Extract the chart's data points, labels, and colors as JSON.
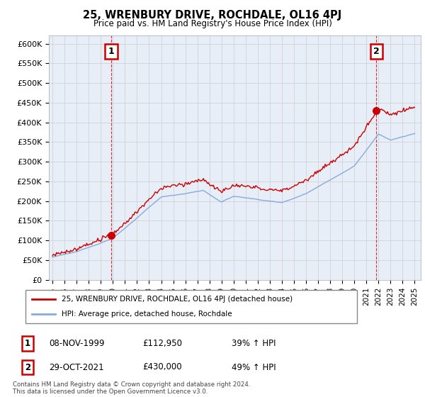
{
  "title": "25, WRENBURY DRIVE, ROCHDALE, OL16 4PJ",
  "subtitle": "Price paid vs. HM Land Registry's House Price Index (HPI)",
  "ylim": [
    0,
    620000
  ],
  "yticks": [
    0,
    50000,
    100000,
    150000,
    200000,
    250000,
    300000,
    350000,
    400000,
    450000,
    500000,
    550000,
    600000
  ],
  "ytick_labels": [
    "£0",
    "£50K",
    "£100K",
    "£150K",
    "£200K",
    "£250K",
    "£300K",
    "£350K",
    "£400K",
    "£450K",
    "£500K",
    "£550K",
    "£600K"
  ],
  "sale1_date": 1999.87,
  "sale1_price": 112950,
  "sale1_label": "1",
  "sale2_date": 2021.83,
  "sale2_price": 430000,
  "sale2_label": "2",
  "line_color_property": "#cc0000",
  "line_color_hpi": "#88aadd",
  "marker_color": "#cc0000",
  "grid_color": "#cccccc",
  "plot_bg_color": "#e8eef8",
  "background_color": "#ffffff",
  "legend_label_property": "25, WRENBURY DRIVE, ROCHDALE, OL16 4PJ (detached house)",
  "legend_label_hpi": "HPI: Average price, detached house, Rochdale",
  "note1_index": "1",
  "note1_date": "08-NOV-1999",
  "note1_price": "£112,950",
  "note1_hpi": "39% ↑ HPI",
  "note2_index": "2",
  "note2_date": "29-OCT-2021",
  "note2_price": "£430,000",
  "note2_hpi": "49% ↑ HPI",
  "footer": "Contains HM Land Registry data © Crown copyright and database right 2024.\nThis data is licensed under the Open Government Licence v3.0."
}
